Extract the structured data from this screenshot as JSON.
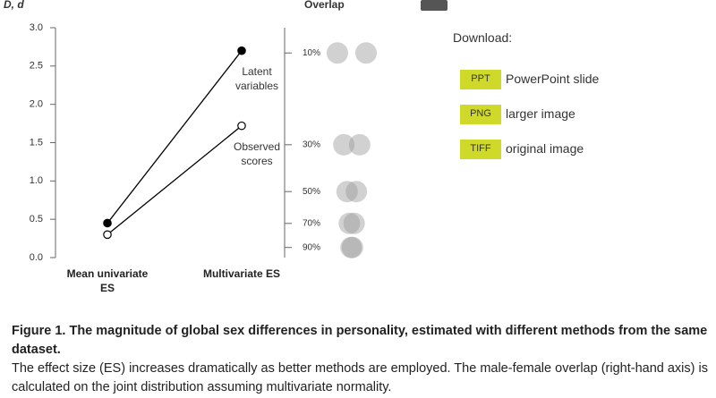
{
  "chart_data": {
    "type": "line",
    "ylabel": "D, d",
    "y2label": "Overlap",
    "categories": [
      "Mean univariate ES",
      "Multivariate ES"
    ],
    "series": [
      {
        "name": "Latent variables",
        "color": "#000000",
        "marker": "filled",
        "values": [
          0.45,
          2.7
        ]
      },
      {
        "name": "Observed scores",
        "color": "#000000",
        "marker": "hollow",
        "values": [
          0.3,
          1.72
        ]
      }
    ],
    "ylim": [
      0,
      3
    ],
    "yticks": [
      {
        "value": 0,
        "label": "0.0"
      },
      {
        "value": 0.5,
        "label": "0.5"
      },
      {
        "value": 1,
        "label": "1.0"
      },
      {
        "value": 1.5,
        "label": "1.5"
      },
      {
        "value": 2,
        "label": "2.0"
      },
      {
        "value": 2.5,
        "label": "2.5"
      },
      {
        "value": 3,
        "label": "3.0"
      }
    ],
    "y2scale": "overlap",
    "y2ticks": [
      {
        "value": 10,
        "label": "10%"
      },
      {
        "value": 30,
        "label": "30%"
      },
      {
        "value": 50,
        "label": "50%"
      },
      {
        "value": 70,
        "label": "70%"
      },
      {
        "value": 90,
        "label": "90%"
      }
    ]
  },
  "download": {
    "title": "Download:",
    "items": [
      {
        "button": "PPT",
        "label": "PowerPoint slide"
      },
      {
        "button": "PNG",
        "label": "larger image"
      },
      {
        "button": "TIFF",
        "label": "original image"
      }
    ]
  },
  "caption": {
    "title": "Figure 1. The magnitude of global sex differences in personality, estimated with different methods from the same dataset.",
    "text": "The effect size (ES) increases dramatically as better methods are employed. The male-female overlap (right-hand axis) is calculated on the joint distribution assuming multivariate normality."
  }
}
